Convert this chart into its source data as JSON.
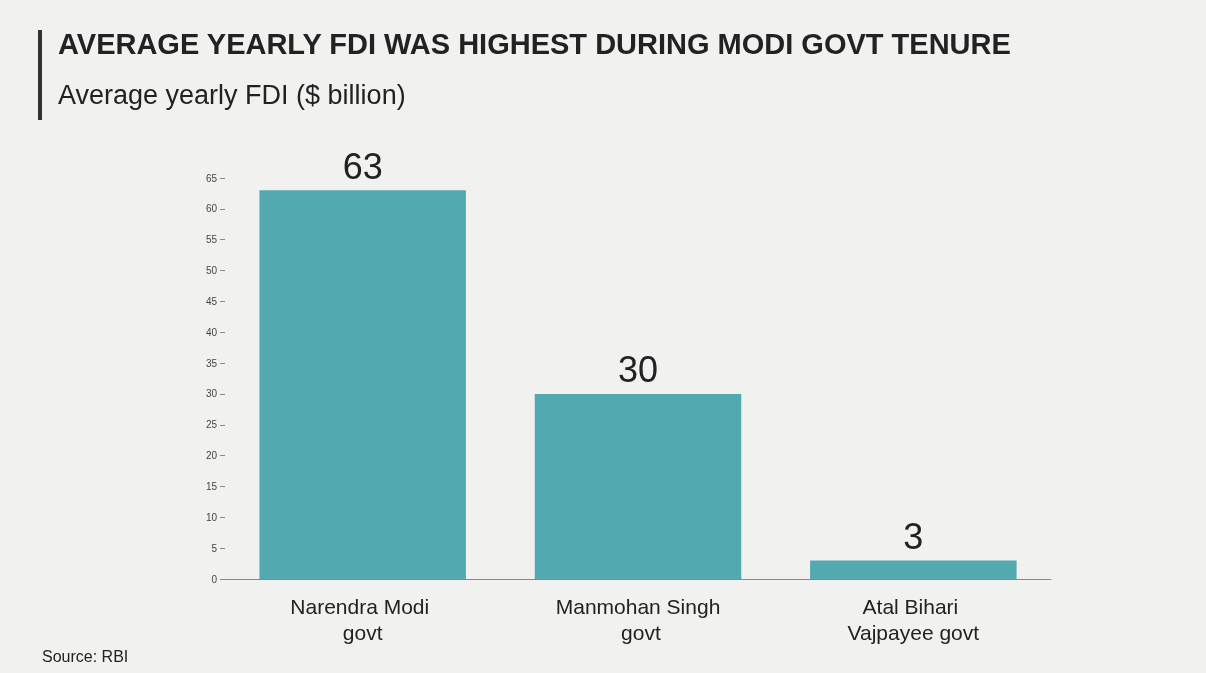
{
  "chart_data": {
    "type": "bar",
    "title": "AVERAGE YEARLY FDI WAS HIGHEST DURING MODI GOVT TENURE",
    "subtitle": "Average yearly FDI ($ billion)",
    "categories": [
      "Narendra Modi govt",
      "Manmohan Singh govt",
      "Atal Bihari Vajpayee govt"
    ],
    "values": [
      63,
      30,
      3
    ],
    "color": "#52a9b0",
    "ylim": [
      0,
      65
    ],
    "yticks": [
      0,
      5,
      10,
      15,
      20,
      25,
      30,
      35,
      40,
      45,
      50,
      55,
      60,
      65
    ],
    "grid": false,
    "data_labels": true,
    "annotations": [
      "Source: RBI"
    ]
  }
}
